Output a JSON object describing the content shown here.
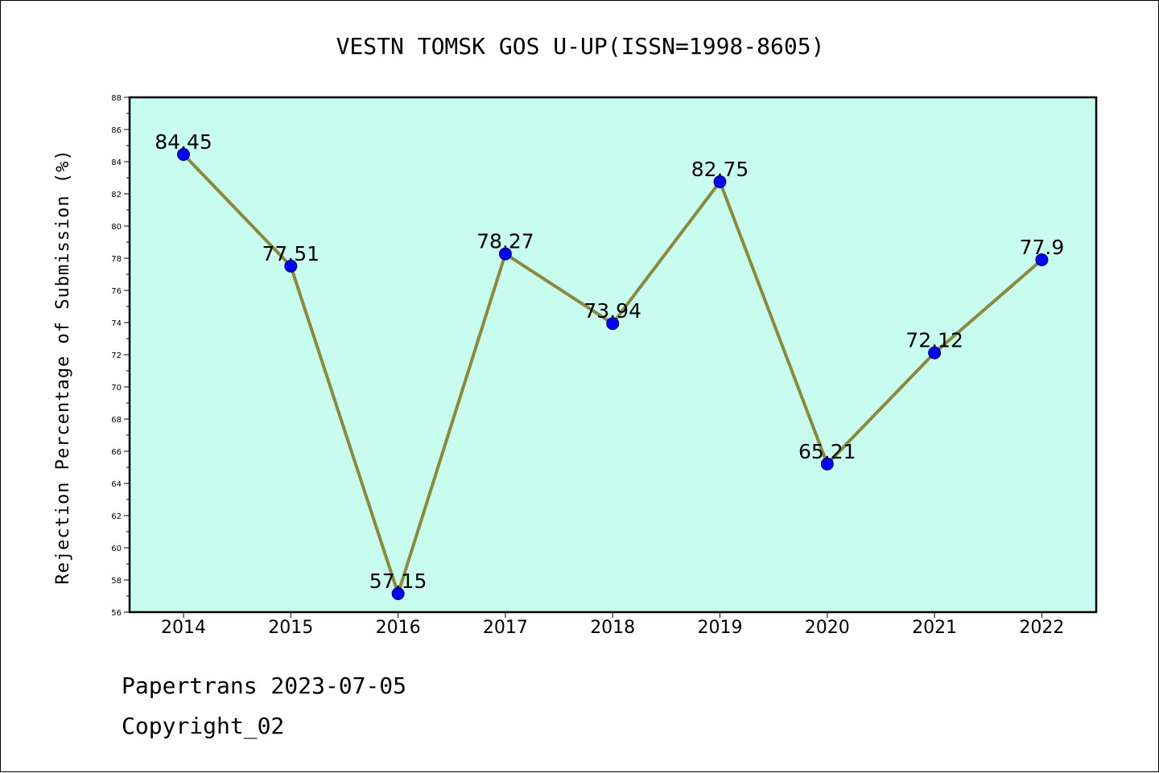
{
  "chart_data": {
    "type": "line",
    "title": "VESTN TOMSK GOS U-UP(ISSN=1998-8605)",
    "xlabel": "",
    "ylabel": "Rejection Percentage of Submission (%)",
    "categories": [
      "2014",
      "2015",
      "2016",
      "2017",
      "2018",
      "2019",
      "2020",
      "2021",
      "2022"
    ],
    "series": [
      {
        "values": [
          84.45,
          77.51,
          57.15,
          78.27,
          73.94,
          82.75,
          65.21,
          72.12,
          77.9
        ],
        "labels": [
          "84.45",
          "77.51",
          "57.15",
          "78.27",
          "73.94",
          "82.75",
          "65.21",
          "72.12",
          "77.9"
        ]
      }
    ],
    "ylim": [
      56,
      88
    ],
    "yticks": [
      56,
      58,
      60,
      62,
      64,
      66,
      68,
      70,
      72,
      74,
      76,
      78,
      80,
      82,
      84,
      86,
      88
    ],
    "grid": false,
    "legend": "none",
    "colors": {
      "plot_background": "#c8fcee",
      "line": "#8b8a3a",
      "marker": "#0000ff",
      "marker_edge": "#000080"
    }
  },
  "footer": {
    "line1": "Papertrans 2023-07-05",
    "line2": "Copyright_02"
  }
}
